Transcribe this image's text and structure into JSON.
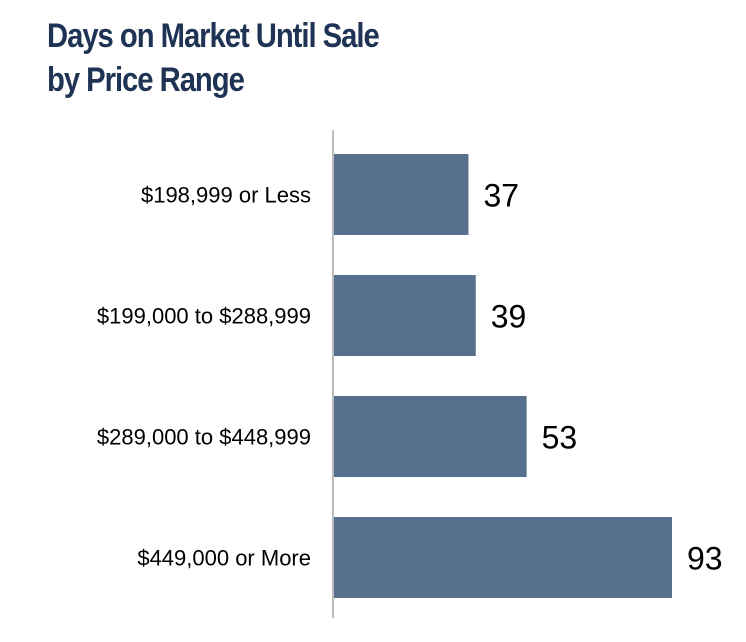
{
  "chart_data": {
    "type": "bar",
    "orientation": "horizontal",
    "title": [
      "Days on Market Until Sale",
      "by Price Range"
    ],
    "categories": [
      "$198,999 or Less",
      "$199,000 to $288,999",
      "$289,000 to $448,999",
      "$449,000 or More"
    ],
    "values": [
      37,
      39,
      53,
      93
    ],
    "xlabel": "",
    "ylabel": "",
    "xlim": [
      0,
      93
    ],
    "grid": false,
    "legend": "none",
    "bar_color": "#57708e",
    "axis_color": "#a6a6a6",
    "title_color": "#1f3354"
  }
}
